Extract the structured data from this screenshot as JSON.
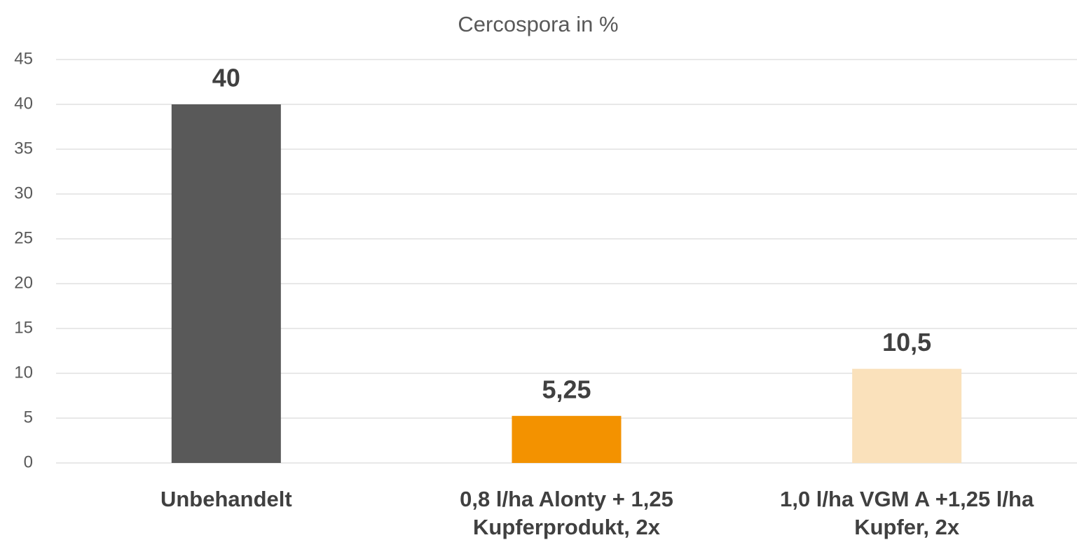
{
  "chart_data": {
    "type": "bar",
    "title": "Cercospora in %",
    "categories": [
      "Unbehandelt",
      "0,8 l/ha Alonty + 1,25 Kupferprodukt, 2x",
      "1,0 l/ha VGM A +1,25 l/ha Kupfer, 2x"
    ],
    "values": [
      40,
      5.25,
      10.5
    ],
    "value_labels": [
      "40",
      "5,25",
      "10,5"
    ],
    "colors": [
      "#595959",
      "#f39200",
      "#fae1bb"
    ],
    "ylim": [
      0,
      45
    ],
    "yticks": [
      0,
      5,
      10,
      15,
      20,
      25,
      30,
      35,
      40,
      45
    ],
    "grid": true
  }
}
